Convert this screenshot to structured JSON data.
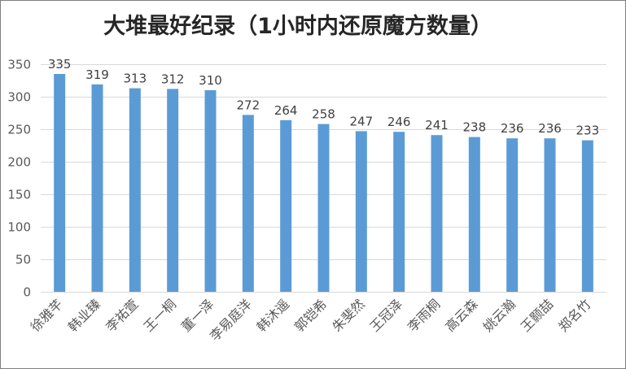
{
  "chart_data": {
    "type": "bar",
    "title": "大堆最好纪录（1小时内还原魔方数量）",
    "categories": [
      "徐雅芊",
      "韩业臻",
      "李祐萱",
      "王一桐",
      "董一泽",
      "李易庭洋",
      "韩沐遥",
      "郭铠希",
      "朱斐然",
      "王冠泽",
      "李雨桐",
      "高云森",
      "姚云瀚",
      "王颢喆",
      "郑名竹"
    ],
    "values": [
      335,
      319,
      313,
      312,
      310,
      272,
      264,
      258,
      247,
      246,
      241,
      238,
      236,
      236,
      233
    ],
    "ylim": [
      0,
      350
    ],
    "yticks": [
      0,
      50,
      100,
      150,
      200,
      250,
      300,
      350
    ],
    "grid": true,
    "bar_color": "#5B9BD5",
    "grid_color": "#D9D9D9"
  }
}
